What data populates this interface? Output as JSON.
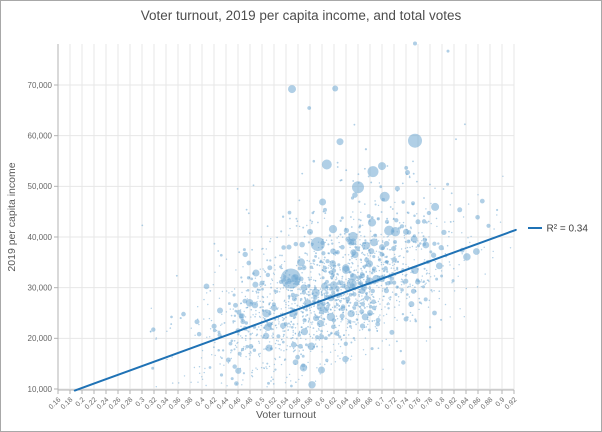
{
  "figure": {
    "background": "#ffffff",
    "border_color": "#a8a8a8"
  },
  "title": "Voter turnout, 2019 per capita income, and total votes",
  "chart_data": {
    "type": "scatter",
    "subtype": "bubble",
    "bubble_size_meaning": "total votes",
    "title": "Voter turnout, 2019 per capita income, and total votes",
    "xlabel": "Voter turnout",
    "ylabel": "2019 per capita income",
    "xlim": [
      0.155,
      0.925
    ],
    "ylim": [
      9600,
      78400
    ],
    "grid": true,
    "x_tick_labels": [
      "0.16",
      "0.18",
      "0.2",
      "0.22",
      "0.24",
      "0.26",
      "0.28",
      "0.3",
      "0.32",
      "0.34",
      "0.36",
      "0.38",
      "0.4",
      "0.42",
      "0.44",
      "0.46",
      "0.48",
      "0.5",
      "0.52",
      "0.54",
      "0.56",
      "0.58",
      "0.6",
      "0.62",
      "0.64",
      "0.66",
      "0.68",
      "0.7",
      "0.72",
      "0.74",
      "0.76",
      "0.78",
      "0.8",
      "0.82",
      "0.84",
      "0.86",
      "0.88",
      "0.9",
      "0.92"
    ],
    "y_ticks": [
      {
        "value": 10000,
        "label": "10,000"
      },
      {
        "value": 20000,
        "label": "20,000"
      },
      {
        "value": 30000,
        "label": "30,000"
      },
      {
        "value": 40000,
        "label": "40,000"
      },
      {
        "value": 50000,
        "label": "50,000"
      },
      {
        "value": 60000,
        "label": "60,000"
      },
      {
        "value": 70000,
        "label": "70,000"
      }
    ],
    "legend": {
      "label": "R² = 0.34",
      "position": "right-middle"
    },
    "trendline": {
      "r_squared": 0.34,
      "x1": 0.188,
      "y1": 9700,
      "x2": 0.923,
      "y2": 41400,
      "color": "#1f72b5",
      "width": 2
    },
    "points_style": {
      "color": "#6fa8d2",
      "opacity": 0.55
    },
    "notable_points_format": "[voter_turnout, per_capita_income, bubble_radius_px]",
    "notable_points": [
      [
        0.548,
        31800,
        10
      ],
      [
        0.593,
        38600,
        7
      ],
      [
        0.66,
        49800,
        6
      ],
      [
        0.608,
        54300,
        5
      ],
      [
        0.685,
        52900,
        5.5
      ],
      [
        0.7,
        54000,
        4
      ],
      [
        0.755,
        59000,
        7
      ],
      [
        0.63,
        58800,
        3.5
      ],
      [
        0.55,
        69200,
        4
      ],
      [
        0.622,
        69300,
        3
      ],
      [
        0.755,
        78200,
        2
      ],
      [
        0.81,
        76700,
        1.5
      ],
      [
        0.49,
        32900,
        3.5
      ],
      [
        0.489,
        30600,
        3
      ],
      [
        0.5,
        30900,
        2.5
      ],
      [
        0.601,
        46900,
        3.5
      ],
      [
        0.43,
        25500,
        3
      ],
      [
        0.46,
        21500,
        2.5
      ],
      [
        0.52,
        26000,
        3
      ],
      [
        0.57,
        30000,
        3.5
      ],
      [
        0.64,
        33500,
        4
      ],
      [
        0.67,
        30000,
        3
      ],
      [
        0.615,
        28000,
        3.5
      ],
      [
        0.59,
        24000,
        3
      ],
      [
        0.655,
        36500,
        3.5
      ],
      [
        0.7,
        38000,
        3
      ],
      [
        0.72,
        35500,
        2.5
      ],
      [
        0.74,
        41000,
        3
      ],
      [
        0.76,
        43000,
        2.5
      ],
      [
        0.565,
        35000,
        4
      ],
      [
        0.535,
        22500,
        3
      ],
      [
        0.625,
        21000,
        2.5
      ],
      [
        0.68,
        25000,
        3
      ],
      [
        0.58,
        41000,
        3
      ],
      [
        0.545,
        38000,
        2.5
      ]
    ],
    "cluster_distribution": {
      "description": "dense cloud of small county bubbles; estimated from pixels",
      "count": 1800,
      "seed": 42,
      "x_mean": 0.615,
      "x_sd": 0.105,
      "x_min": 0.3,
      "x_max": 0.924,
      "y_trend_intercept": 2660,
      "y_trend_slope": 42000,
      "y_noise_sd": 6500,
      "upper_tail_base_prob": 0.06,
      "upper_tail_x_coeff": 0.12,
      "upper_tail_max_boost": 22000,
      "y_min": 10400,
      "y_max": 70500
    },
    "colors": {
      "gridline": "#e7e7e7",
      "axis_line": "#b3b3b3",
      "tick_text": "#666666",
      "axis_title_text": "#595959",
      "title_text": "#4d4d4d",
      "legend_text": "#404040"
    }
  }
}
